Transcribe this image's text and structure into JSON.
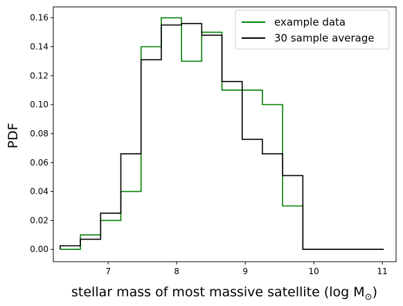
{
  "chart_data": {
    "type": "line",
    "style": "step-histogram",
    "xlabel": "stellar mass of most massive satellite (log M",
    "xlabel_sub": "⊙",
    "xlabel_close": ")",
    "ylabel": "PDF",
    "xlim": [
      6.2,
      11.2
    ],
    "ylim": [
      -0.0085,
      0.1675
    ],
    "xticks": [
      7,
      8,
      9,
      10,
      11
    ],
    "yticks": [
      0.0,
      0.02,
      0.04,
      0.06,
      0.08,
      0.1,
      0.12,
      0.14,
      0.16
    ],
    "yticks_decimals": 2,
    "grid": false,
    "legend_position": "top-right",
    "bin_edges": [
      6.3,
      6.595,
      6.89,
      7.185,
      7.48,
      7.775,
      8.07,
      8.365,
      8.66,
      8.955,
      9.25,
      9.545,
      9.84,
      10.135,
      10.43,
      10.725,
      11.02
    ],
    "series": [
      {
        "name": "example data",
        "color": "#008000",
        "values": [
          0.0,
          0.01,
          0.02,
          0.04,
          0.14,
          0.16,
          0.13,
          0.15,
          0.11,
          0.11,
          0.1,
          0.03,
          0.0,
          0.0,
          0.0,
          0.0
        ]
      },
      {
        "name": "30 sample average",
        "color": "#000000",
        "values": [
          0.0025,
          0.007,
          0.025,
          0.066,
          0.131,
          0.155,
          0.156,
          0.148,
          0.116,
          0.076,
          0.066,
          0.051,
          0.0,
          0.0,
          0.0,
          0.0
        ]
      }
    ]
  }
}
